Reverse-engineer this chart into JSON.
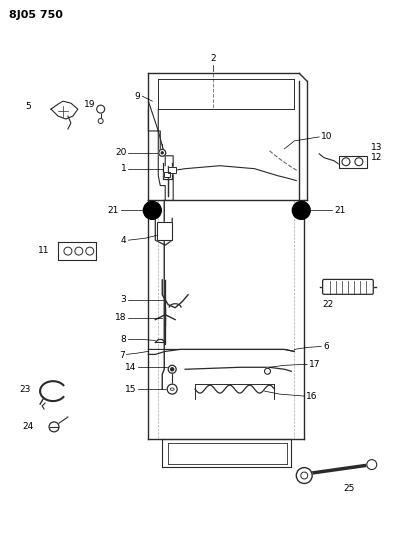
{
  "title": "8J05 750",
  "bg_color": "#ffffff",
  "line_color": "#2a2a2a",
  "fig_width": 3.96,
  "fig_height": 5.33,
  "dpi": 100
}
